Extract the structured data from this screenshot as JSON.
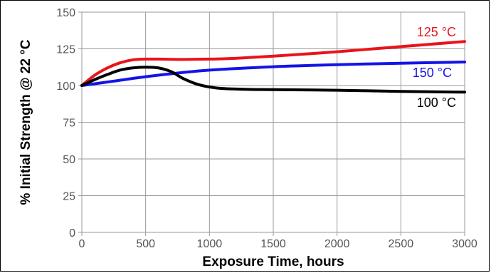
{
  "chart_data": {
    "type": "line",
    "title": "",
    "xlabel": "Exposure Time, hours",
    "ylabel": "% Initial Strength @ 22 °C",
    "xlim": [
      0,
      3000
    ],
    "ylim": [
      0,
      150
    ],
    "xticks": [
      0,
      500,
      1000,
      1500,
      2000,
      2500,
      3000
    ],
    "yticks": [
      0,
      25,
      50,
      75,
      100,
      125,
      150
    ],
    "grid": true,
    "legend": "inline labels",
    "series": [
      {
        "name": "125 °C",
        "color": "#e8141b",
        "x": [
          0,
          100,
          200,
          300,
          400,
          500,
          600,
          800,
          1000,
          1200,
          1500,
          2000,
          2500,
          3000
        ],
        "y": [
          100,
          107,
          112,
          115.5,
          117.5,
          118,
          118,
          117.8,
          118,
          118.5,
          120,
          123,
          126.5,
          130
        ]
      },
      {
        "name": "150 °C",
        "color": "#1414e6",
        "x": [
          0,
          250,
          500,
          750,
          1000,
          1500,
          2000,
          2500,
          3000
        ],
        "y": [
          100,
          103,
          106,
          108.5,
          110.5,
          112.8,
          114.2,
          115.2,
          116
        ]
      },
      {
        "name": "100 °C",
        "color": "#000000",
        "x": [
          0,
          100,
          200,
          300,
          400,
          500,
          600,
          700,
          750,
          800,
          900,
          1000,
          1100,
          1300,
          1500,
          2000,
          2500,
          3000
        ],
        "y": [
          100,
          104,
          107.5,
          110.5,
          112,
          112.5,
          112,
          109.5,
          107,
          104.5,
          101,
          99,
          98,
          97.4,
          97.2,
          96.8,
          96,
          95.5
        ]
      }
    ]
  }
}
